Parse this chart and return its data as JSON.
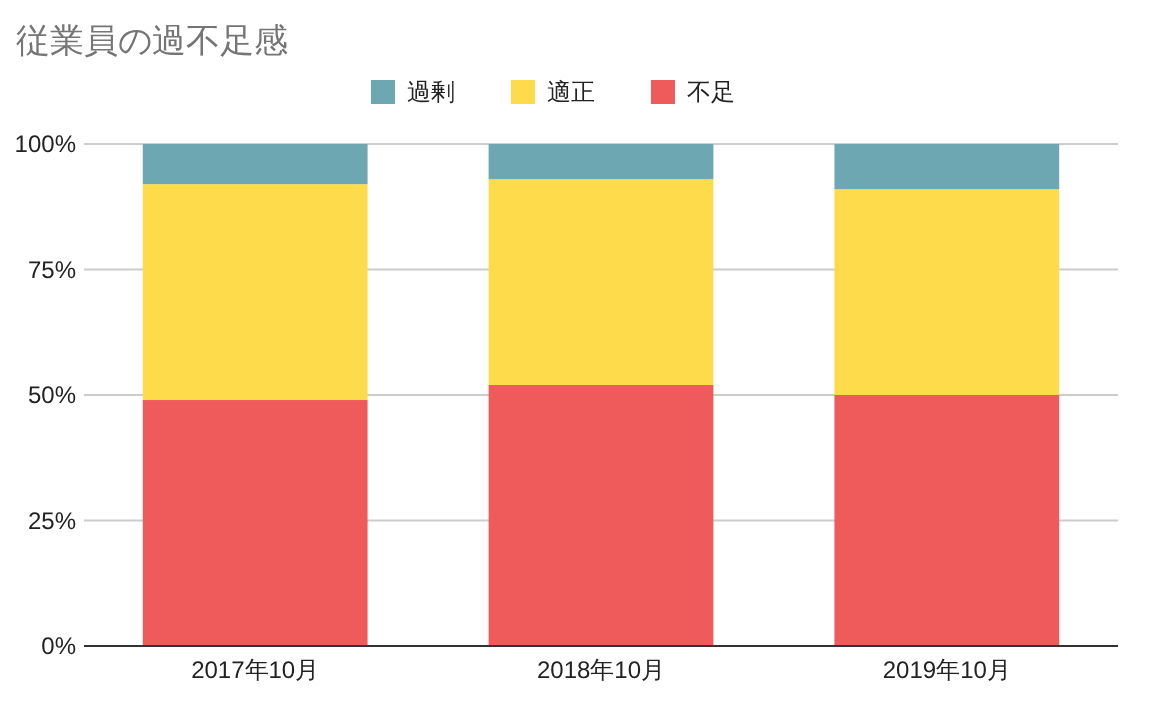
{
  "chart_data": {
    "type": "bar",
    "title": "従業員の過不足感",
    "categories": [
      "2017年10月",
      "2018年10月",
      "2019年10月"
    ],
    "series": [
      {
        "name": "不足",
        "color": "#ef5a5a",
        "values": [
          49,
          52,
          50
        ]
      },
      {
        "name": "適正",
        "color": "#fddb4a",
        "values": [
          43,
          41,
          41
        ]
      },
      {
        "name": "過剰",
        "color": "#6ca7b2",
        "values": [
          8,
          7,
          9
        ]
      }
    ],
    "stacked": true,
    "ylim": [
      0,
      100
    ],
    "yticks": [
      {
        "value": 0,
        "label": "0%"
      },
      {
        "value": 25,
        "label": "25%"
      },
      {
        "value": 50,
        "label": "50%"
      },
      {
        "value": 75,
        "label": "75%"
      },
      {
        "value": 100,
        "label": "100%"
      }
    ],
    "grid": "y",
    "legend": "top"
  }
}
